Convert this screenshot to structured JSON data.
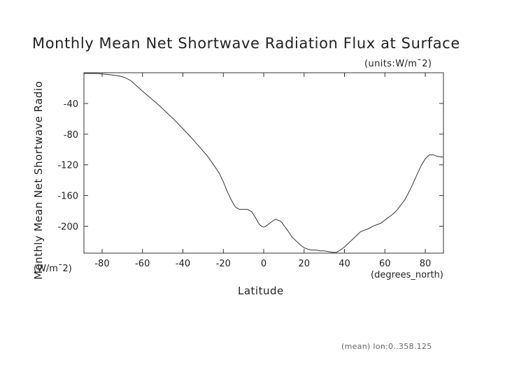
{
  "chart_data": {
    "type": "line",
    "title": "Monthly Mean Net Shortwave Radiation Flux at Surface",
    "subtitle": "(units:W/m¯2)",
    "xlabel": "Latitude",
    "x_units": "(degrees_north)",
    "ylabel": "Monthly Mean Net Shortwave Radio",
    "y_units": "(W/m¯2)",
    "footer": "(mean) lon:0..358.125",
    "xlim": [
      -89,
      89
    ],
    "ylim": [
      -235,
      0
    ],
    "x_ticks": [
      -80,
      -60,
      -40,
      -20,
      0,
      20,
      40,
      60,
      80
    ],
    "y_ticks": [
      -40,
      -80,
      -120,
      -160,
      -200
    ],
    "grid": false,
    "series": [
      {
        "x": [
          -89,
          -86,
          -82,
          -78,
          -75,
          -72,
          -69,
          -66,
          -63,
          -60,
          -56,
          -52,
          -48,
          -44,
          -40,
          -36,
          -32,
          -28,
          -24,
          -22,
          -20,
          -18,
          -16,
          -14,
          -12,
          -10,
          -8,
          -6,
          -4,
          -3,
          -2,
          -1,
          0,
          1,
          2,
          3,
          4,
          5,
          6,
          7,
          8,
          9,
          10,
          12,
          14,
          16,
          18,
          20,
          22,
          24,
          26,
          28,
          30,
          32,
          34,
          36,
          38,
          40,
          42,
          44,
          46,
          48,
          50,
          52,
          54,
          56,
          58,
          60,
          62,
          64,
          66,
          68,
          70,
          72,
          74,
          76,
          78,
          80,
          82,
          84,
          86,
          89
        ],
        "y": [
          -1,
          -1,
          -1,
          -2,
          -3,
          -4,
          -6,
          -10,
          -17,
          -24,
          -33,
          -42,
          -52,
          -62,
          -73,
          -84,
          -96,
          -108,
          -123,
          -131,
          -142,
          -155,
          -166,
          -175,
          -178,
          -178,
          -178,
          -181,
          -189,
          -194,
          -198,
          -200,
          -201,
          -200,
          -198,
          -196,
          -194,
          -192,
          -191,
          -192,
          -193,
          -195,
          -199,
          -206,
          -214,
          -219,
          -224,
          -228,
          -230,
          -231,
          -231,
          -232,
          -232,
          -233,
          -234,
          -234,
          -231,
          -227,
          -222,
          -217,
          -212,
          -207,
          -205,
          -203,
          -200,
          -198,
          -196,
          -192,
          -188,
          -184,
          -179,
          -172,
          -165,
          -155,
          -144,
          -132,
          -121,
          -112,
          -107,
          -107,
          -109,
          -110
        ]
      }
    ]
  }
}
